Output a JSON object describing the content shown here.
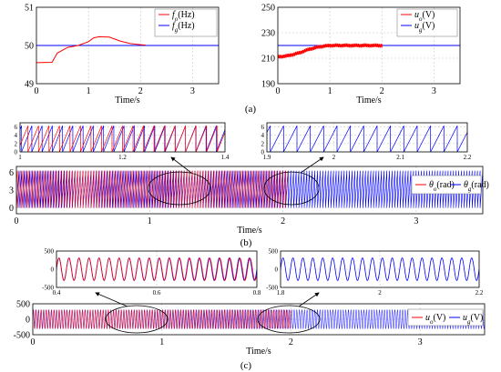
{
  "colors": {
    "red": "#ff0000",
    "blue": "#0000ff",
    "grid": "#c8c8c8",
    "axis": "#000000"
  },
  "panel_labels": {
    "a": "(a)",
    "b": "(b)",
    "c": "(c)"
  },
  "chart_data": [
    {
      "id": "a_left",
      "type": "line",
      "xlim": [
        0,
        3.5
      ],
      "ylim": [
        49,
        51
      ],
      "grid": true,
      "xticks": [
        "0",
        "1",
        "2",
        "3"
      ],
      "yticks": [
        "49",
        "50",
        "51"
      ],
      "xlabel": "Time/s",
      "legend_position": "top-right",
      "series": [
        {
          "name": "f",
          "sub": "o",
          "unit": "(Hz)",
          "color": "#ff0000",
          "x": [
            0,
            0.3,
            0.4,
            0.6,
            0.8,
            1.0,
            1.1,
            1.2,
            1.4,
            1.6,
            1.8,
            2.0,
            2.1
          ],
          "y": [
            49.55,
            49.56,
            49.8,
            49.95,
            50.0,
            50.1,
            50.2,
            50.23,
            50.22,
            50.12,
            50.05,
            50.02,
            50.01
          ]
        },
        {
          "name": "f",
          "sub": "g",
          "unit": "(Hz)",
          "color": "#0000ff",
          "x": [
            0,
            3.5
          ],
          "y": [
            50,
            50
          ]
        }
      ]
    },
    {
      "id": "a_right",
      "type": "line",
      "xlim": [
        0,
        3.5
      ],
      "ylim": [
        190,
        250
      ],
      "grid": true,
      "xticks": [
        "0",
        "1",
        "2",
        "3"
      ],
      "yticks": [
        "190",
        "210",
        "230",
        "250"
      ],
      "xlabel": "Time/s",
      "legend_position": "top-right",
      "series": [
        {
          "name": "u",
          "sub": "o",
          "unit": "(V)",
          "color": "#ff0000",
          "x": [
            0,
            0.2,
            0.4,
            0.6,
            0.8,
            1.0,
            1.5,
            2.0
          ],
          "y": [
            211,
            212,
            214,
            217,
            219,
            220,
            220,
            220
          ]
        },
        {
          "name": "u",
          "sub": "g",
          "unit": "(V)",
          "color": "#0000ff",
          "x": [
            0,
            3.5
          ],
          "y": [
            220,
            220
          ]
        }
      ]
    },
    {
      "id": "b_zoom1",
      "type": "line",
      "xlim": [
        1,
        1.4
      ],
      "ylim": [
        0,
        7
      ],
      "grid": true,
      "xticks": [
        "1",
        "1.2",
        "1.4"
      ],
      "yticks": [
        "0",
        "2",
        "4",
        "6"
      ]
    },
    {
      "id": "b_zoom2",
      "type": "line",
      "xlim": [
        1.9,
        2.2
      ],
      "ylim": [
        0,
        7
      ],
      "grid": true,
      "xticks": [
        "1.9",
        "2",
        "2.1",
        "2.2"
      ],
      "yticks": [
        "0",
        "2",
        "4",
        "6"
      ]
    },
    {
      "id": "b_main",
      "type": "line",
      "xlim": [
        0,
        3.5
      ],
      "ylim": [
        -1,
        7
      ],
      "grid": true,
      "xticks": [
        "0",
        "1",
        "2",
        "3"
      ],
      "yticks": [
        "0",
        "3",
        "6"
      ],
      "xlabel": "Time/s",
      "legend_position": "right",
      "series": [
        {
          "name": "θ",
          "sub": "o",
          "unit": "(rad)",
          "color": "#ff0000"
        },
        {
          "name": "θ",
          "sub": "g",
          "unit": "(rad)",
          "color": "#0000ff"
        }
      ]
    },
    {
      "id": "c_zoom1",
      "type": "line",
      "xlim": [
        0.4,
        0.8
      ],
      "ylim": [
        -500,
        500
      ],
      "grid": true,
      "xticks": [
        "0.4",
        "0.6",
        "0.8"
      ],
      "yticks": [
        "-500",
        "0",
        "500"
      ]
    },
    {
      "id": "c_zoom2",
      "type": "line",
      "xlim": [
        1.8,
        2.2
      ],
      "ylim": [
        -500,
        500
      ],
      "grid": true,
      "xticks": [
        "1.8",
        "2",
        "2.2"
      ],
      "yticks": [
        "-500",
        "0",
        "500"
      ]
    },
    {
      "id": "c_main",
      "type": "line",
      "xlim": [
        0,
        3.5
      ],
      "ylim": [
        -500,
        500
      ],
      "grid": true,
      "xticks": [
        "0",
        "1",
        "2",
        "3"
      ],
      "yticks": [
        "-500",
        "0",
        "500"
      ],
      "xlabel": "Time/s",
      "legend_position": "right",
      "series": [
        {
          "name": "u",
          "sub": "o",
          "unit": "(V)",
          "color": "#ff0000"
        },
        {
          "name": "u",
          "sub": "g",
          "unit": "(V)",
          "color": "#0000ff"
        }
      ]
    }
  ]
}
